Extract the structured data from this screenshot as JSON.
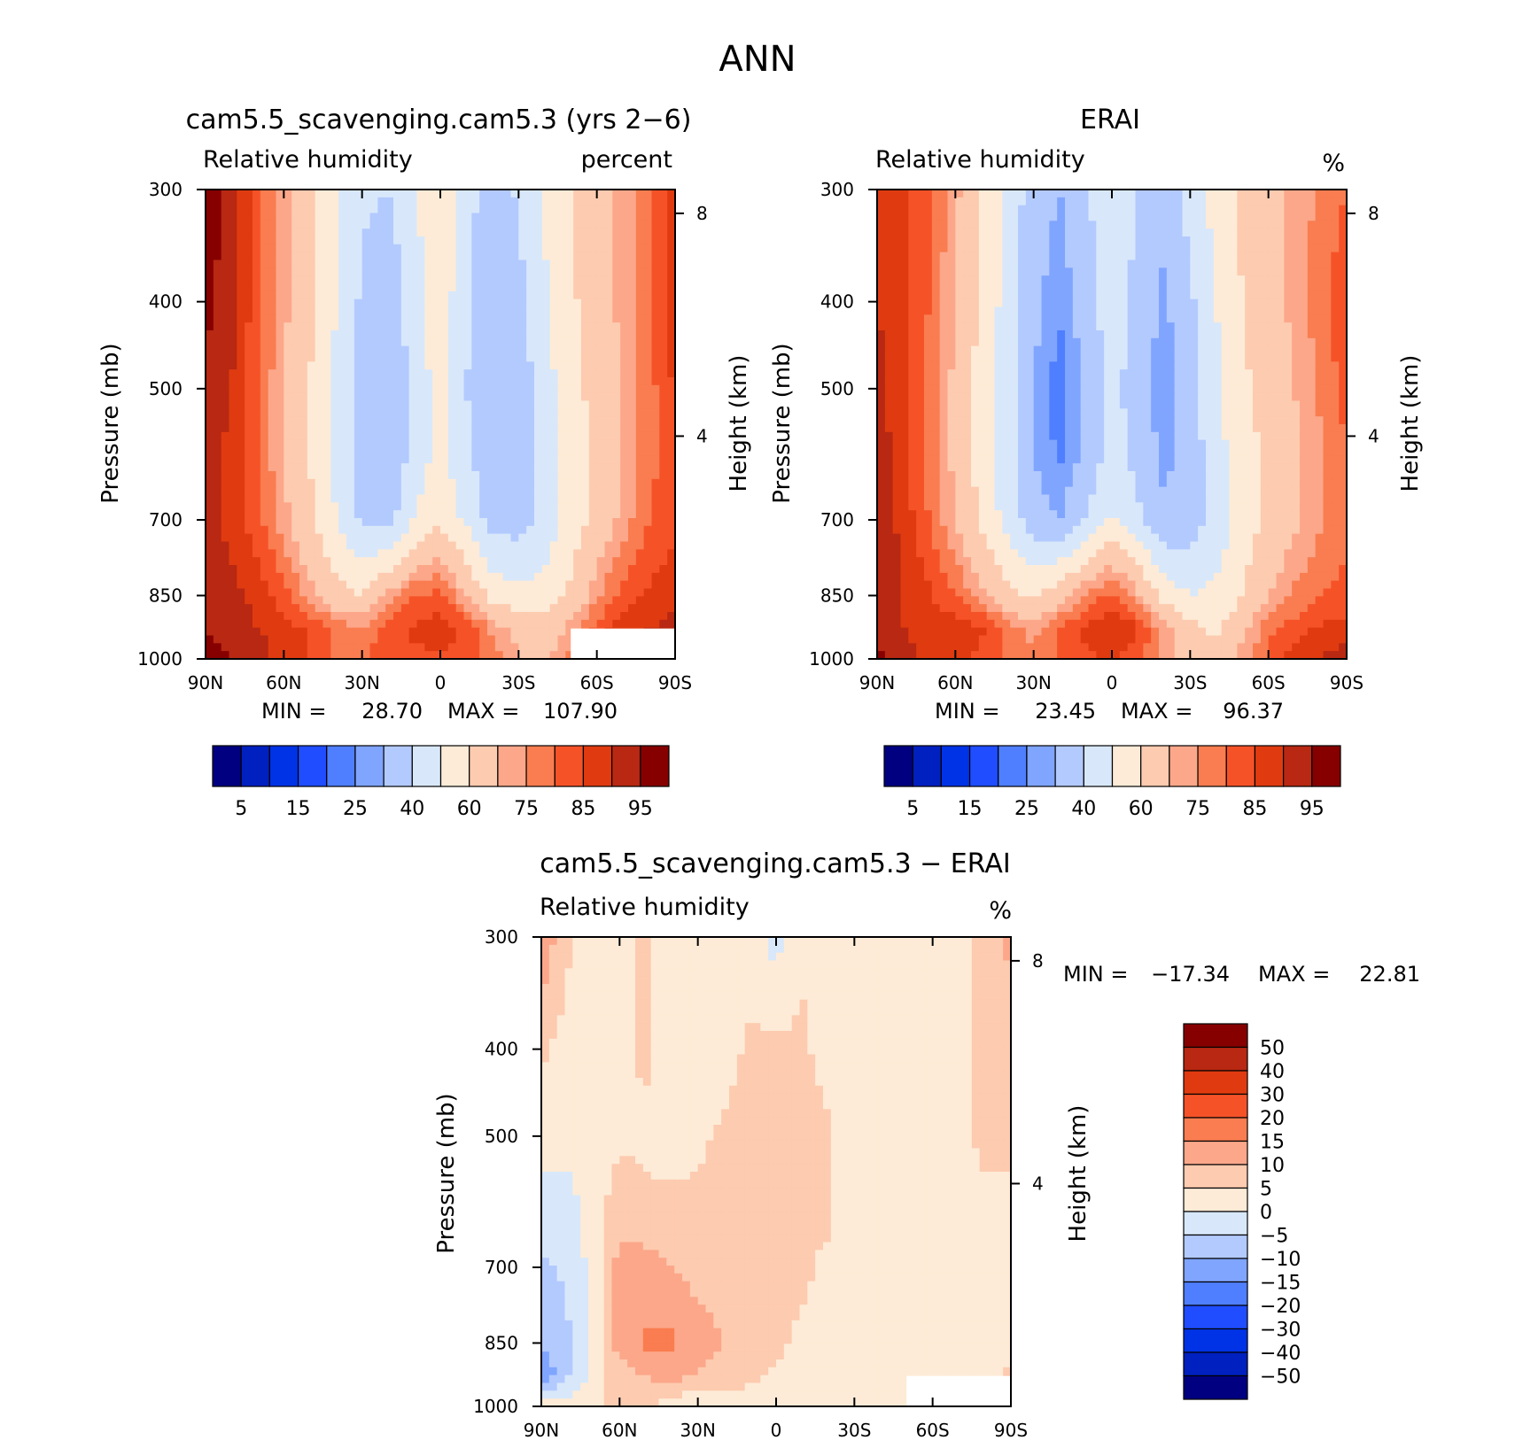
{
  "title": "ANN",
  "colors": {
    "seq": [
      "#000080",
      "#0020bf",
      "#0033e6",
      "#1f4dff",
      "#4f7fff",
      "#80a5ff",
      "#b3caff",
      "#d8e8fa",
      "#fdebd7",
      "#fdcbb0",
      "#fca78a",
      "#f97d50",
      "#f65228",
      "#e03b10",
      "#b82812",
      "#860000"
    ],
    "div": [
      "#000080",
      "#0020bf",
      "#0033e6",
      "#1f4dff",
      "#4f7fff",
      "#80a5ff",
      "#b3caff",
      "#d8e8fa",
      "#fdebd7",
      "#fdcbb0",
      "#fca78a",
      "#f97d50",
      "#f65228",
      "#e03b10",
      "#b82812",
      "#860000"
    ]
  },
  "panels": [
    {
      "id": "model",
      "title": "cam5.5_scavenging.cam5.3 (yrs 2−6)",
      "var_label": "Relative humidity",
      "units": "percent",
      "ylabel": "Pressure (mb)",
      "y2label": "Height (km)",
      "min_label": "MIN =",
      "min_value": "28.70",
      "max_label": "MAX =",
      "max_value": "107.90",
      "colorbar_labels": [
        "5",
        "15",
        "25",
        "40",
        "60",
        "75",
        "85",
        "95"
      ]
    },
    {
      "id": "obs",
      "title": "ERAI",
      "var_label": "Relative humidity",
      "units": "%",
      "ylabel": "Pressure (mb)",
      "y2label": "Height (km)",
      "min_label": "MIN =",
      "min_value": "23.45",
      "max_label": "MAX =",
      "max_value": "96.37",
      "colorbar_labels": [
        "5",
        "15",
        "25",
        "40",
        "60",
        "75",
        "85",
        "95"
      ]
    },
    {
      "id": "diff",
      "title": "cam5.5_scavenging.cam5.3 − ERAI",
      "var_label": "Relative humidity",
      "units": "%",
      "ylabel": "Pressure (mb)",
      "y2label": "Height (km)",
      "min_label": "MIN =",
      "min_value": "−17.34",
      "max_label": "MAX =",
      "max_value": "22.81",
      "colorbar_labels": [
        "50",
        "40",
        "30",
        "20",
        "15",
        "10",
        "5",
        "0",
        "−5",
        "−10",
        "−15",
        "−20",
        "−30",
        "−40",
        "−50"
      ]
    }
  ],
  "chart_data": {
    "type": "heatmap",
    "title": "ANN",
    "x_ticks": [
      "90N",
      "60N",
      "30N",
      "0",
      "30S",
      "60S",
      "90S"
    ],
    "y_ticks": [
      "300",
      "400",
      "500",
      "700",
      "850",
      "1000"
    ],
    "y2_ticks": [
      "8",
      "4"
    ],
    "seq_levels": [
      5,
      10,
      15,
      20,
      25,
      30,
      40,
      50,
      60,
      70,
      75,
      80,
      85,
      90,
      95
    ],
    "div_levels": [
      -50,
      -40,
      -30,
      -20,
      -15,
      -10,
      -5,
      0,
      5,
      10,
      15,
      20,
      30,
      40,
      50
    ],
    "lat": [
      -90,
      -80,
      -70,
      -60,
      -50,
      -40,
      -30,
      -20,
      -10,
      0,
      10,
      20,
      30,
      40,
      50,
      60,
      70,
      80,
      90
    ],
    "lev": [
      300,
      400,
      500,
      600,
      700,
      850,
      925,
      1000
    ],
    "fields": {
      "model": [
        [
          88,
          80,
          72,
          68,
          60,
          52,
          42,
          32,
          45,
          60,
          48,
          40,
          42,
          52,
          62,
          72,
          82,
          92,
          100
        ],
        [
          88,
          80,
          72,
          66,
          58,
          48,
          36,
          32,
          42,
          56,
          46,
          32,
          38,
          50,
          62,
          72,
          82,
          92,
          96
        ],
        [
          86,
          78,
          70,
          64,
          56,
          46,
          34,
          32,
          40,
          54,
          44,
          30,
          36,
          48,
          60,
          70,
          80,
          90,
          95
        ],
        [
          84,
          78,
          70,
          62,
          54,
          44,
          34,
          34,
          42,
          54,
          44,
          32,
          36,
          48,
          60,
          70,
          80,
          88,
          93
        ],
        [
          84,
          80,
          72,
          64,
          54,
          44,
          36,
          36,
          48,
          58,
          50,
          36,
          38,
          50,
          62,
          72,
          82,
          88,
          92
        ],
        [
          88,
          86,
          82,
          74,
          62,
          54,
          52,
          56,
          70,
          82,
          80,
          72,
          60,
          64,
          72,
          82,
          88,
          92,
          94
        ],
        [
          92,
          90,
          88,
          82,
          72,
          64,
          68,
          74,
          84,
          88,
          86,
          82,
          76,
          78,
          84,
          88,
          90,
          93,
          95
        ],
        [
          98,
          96,
          92,
          86,
          76,
          68,
          70,
          78,
          82,
          84,
          84,
          82,
          80,
          80,
          84,
          88,
          92,
          95,
          97
        ]
      ],
      "obs": [
        [
          80,
          76,
          72,
          68,
          62,
          54,
          44,
          34,
          40,
          50,
          38,
          30,
          34,
          48,
          60,
          72,
          80,
          86,
          90
        ],
        [
          84,
          78,
          72,
          66,
          60,
          50,
          38,
          28,
          36,
          46,
          34,
          26,
          32,
          46,
          58,
          70,
          80,
          86,
          90
        ],
        [
          82,
          76,
          70,
          64,
          58,
          48,
          36,
          26,
          34,
          44,
          32,
          22,
          30,
          44,
          56,
          68,
          78,
          86,
          92
        ],
        [
          80,
          74,
          68,
          62,
          56,
          46,
          34,
          28,
          36,
          46,
          32,
          24,
          30,
          44,
          56,
          68,
          78,
          86,
          94
        ],
        [
          78,
          74,
          68,
          62,
          54,
          44,
          34,
          32,
          42,
          52,
          40,
          30,
          34,
          46,
          58,
          70,
          80,
          88,
          95
        ],
        [
          82,
          80,
          76,
          70,
          60,
          52,
          50,
          56,
          72,
          82,
          76,
          66,
          58,
          64,
          72,
          80,
          86,
          90,
          95
        ],
        [
          86,
          86,
          82,
          78,
          68,
          58,
          64,
          72,
          86,
          90,
          86,
          80,
          72,
          78,
          86,
          88,
          88,
          90,
          95
        ],
        [
          94,
          90,
          88,
          82,
          72,
          64,
          64,
          72,
          82,
          86,
          84,
          80,
          78,
          80,
          84,
          86,
          88,
          92,
          96
        ]
      ],
      "diff": [
        [
          12,
          6,
          4,
          3,
          3,
          4,
          2,
          2,
          4,
          -2,
          2,
          4,
          3,
          3,
          6,
          4,
          3,
          6,
          14
        ],
        [
          6,
          6,
          4,
          3,
          2,
          3,
          2,
          2,
          6,
          6,
          6,
          2,
          1,
          2,
          6,
          4,
          3,
          3,
          6
        ],
        [
          6,
          6,
          4,
          3,
          2,
          3,
          1,
          6,
          10,
          6,
          10,
          6,
          4,
          3,
          4,
          4,
          3,
          2,
          2
        ],
        [
          4,
          4,
          3,
          2,
          2,
          2,
          2,
          6,
          6,
          6,
          8,
          6,
          6,
          6,
          6,
          8,
          2,
          -2,
          -2
        ],
        [
          4,
          4,
          3,
          2,
          2,
          2,
          0,
          4,
          6,
          6,
          8,
          8,
          8,
          10,
          12,
          12,
          2,
          -4,
          -6
        ],
        [
          4,
          3,
          2,
          1,
          2,
          2,
          2,
          4,
          4,
          6,
          8,
          10,
          12,
          16,
          16,
          12,
          2,
          -6,
          -10
        ],
        [
          6,
          2,
          1,
          2,
          2,
          2,
          2,
          2,
          4,
          4,
          6,
          8,
          10,
          12,
          10,
          8,
          2,
          -6,
          -14
        ],
        [
          8,
          3,
          2,
          2,
          2,
          2,
          2,
          4,
          2,
          2,
          2,
          2,
          0,
          2,
          6,
          8,
          4,
          2,
          2
        ]
      ]
    },
    "missing_regions": [
      {
        "panel": "model",
        "lat": [
          -90,
          -50
        ],
        "lev_from": 925
      },
      {
        "panel": "diff",
        "lat": [
          -90,
          -50
        ],
        "lev_from": 925
      }
    ]
  }
}
